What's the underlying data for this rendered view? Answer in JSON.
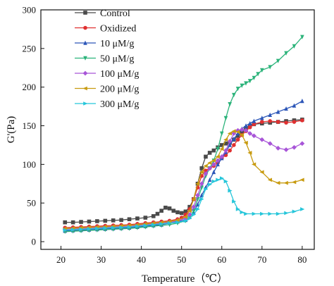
{
  "chart_data": {
    "type": "line",
    "title": "",
    "xlabel": "Temperature（℃）",
    "ylabel": "G'(Pa)",
    "xlim": [
      15,
      83
    ],
    "ylim": [
      -10,
      300
    ],
    "xticks": [
      20,
      30,
      40,
      50,
      60,
      70,
      80
    ],
    "yticks": [
      0,
      50,
      100,
      150,
      200,
      250,
      300
    ],
    "grid": false,
    "legend_position": "top-left",
    "series": [
      {
        "name": "Control",
        "color": "#4a4a4a",
        "marker": "square",
        "x": [
          21,
          23,
          25,
          27,
          29,
          31,
          33,
          35,
          37,
          39,
          41,
          43,
          44,
          45,
          46,
          47,
          48,
          49,
          50,
          51,
          52,
          53,
          54,
          55,
          56,
          57,
          58,
          59,
          60,
          61,
          62,
          63,
          64,
          65,
          66,
          67,
          68,
          70,
          72,
          74,
          76,
          78,
          80
        ],
        "y": [
          25,
          25,
          25.5,
          26,
          26.5,
          27,
          27.5,
          28,
          29,
          30,
          31,
          33,
          36,
          40,
          44,
          43,
          40,
          38,
          37,
          39,
          45,
          55,
          75,
          95,
          110,
          115,
          118,
          122,
          125,
          127,
          128,
          132,
          137,
          142,
          147,
          150,
          152,
          153,
          154,
          155,
          156,
          157,
          158
        ]
      },
      {
        "name": "Oxidized",
        "color": "#e03030",
        "marker": "circle",
        "x": [
          21,
          23,
          25,
          27,
          29,
          31,
          33,
          35,
          37,
          39,
          41,
          43,
          45,
          47,
          49,
          50,
          51,
          52,
          53,
          54,
          55,
          56,
          57,
          58,
          59,
          60,
          61,
          62,
          63,
          64,
          65,
          66,
          67,
          68,
          70,
          72,
          74,
          76,
          78,
          80
        ],
        "y": [
          18,
          18.5,
          19,
          19.5,
          20,
          20.5,
          21,
          21.5,
          22,
          23,
          24,
          25,
          26,
          27,
          29,
          31,
          35,
          42,
          55,
          70,
          85,
          92,
          95,
          98,
          102,
          108,
          112,
          118,
          125,
          132,
          138,
          143,
          148,
          152,
          155,
          156,
          155,
          154,
          155,
          157
        ]
      },
      {
        "name": "10  μM/g",
        "color": "#2c56b8",
        "marker": "triangle-up",
        "x": [
          21,
          23,
          25,
          27,
          29,
          31,
          33,
          35,
          37,
          39,
          41,
          43,
          45,
          47,
          49,
          51,
          52,
          53,
          54,
          55,
          56,
          57,
          58,
          59,
          60,
          61,
          62,
          63,
          64,
          65,
          66,
          67,
          68,
          70,
          72,
          74,
          76,
          78,
          80
        ],
        "y": [
          14,
          14.5,
          15,
          15.5,
          16,
          16.5,
          17,
          17.5,
          18,
          19,
          20,
          21,
          22,
          24,
          26,
          28,
          32,
          38,
          48,
          60,
          70,
          80,
          90,
          100,
          108,
          116,
          125,
          133,
          140,
          146,
          150,
          153,
          156,
          160,
          164,
          168,
          172,
          176,
          182
        ]
      },
      {
        "name": "50  μM/g",
        "color": "#2bb37a",
        "marker": "triangle-down",
        "x": [
          21,
          23,
          25,
          27,
          29,
          31,
          33,
          35,
          37,
          39,
          41,
          43,
          45,
          47,
          49,
          51,
          52,
          53,
          54,
          55,
          56,
          57,
          58,
          59,
          60,
          61,
          62,
          63,
          64,
          65,
          66,
          67,
          68,
          69,
          70,
          72,
          74,
          76,
          78,
          80
        ],
        "y": [
          13,
          13.5,
          14,
          14.5,
          15,
          15.5,
          16,
          16.5,
          17,
          18,
          19,
          20,
          21,
          22,
          24,
          27,
          32,
          40,
          55,
          70,
          85,
          95,
          105,
          120,
          140,
          160,
          178,
          190,
          198,
          202,
          205,
          208,
          212,
          217,
          222,
          226,
          234,
          244,
          253,
          265
        ]
      },
      {
        "name": "100 μM/g",
        "color": "#a855d8",
        "marker": "diamond",
        "x": [
          21,
          23,
          25,
          27,
          29,
          31,
          33,
          35,
          37,
          39,
          41,
          43,
          45,
          47,
          49,
          51,
          52,
          53,
          54,
          55,
          56,
          57,
          58,
          59,
          60,
          61,
          62,
          63,
          64,
          65,
          66,
          67,
          68,
          70,
          72,
          74,
          76,
          78,
          80
        ],
        "y": [
          16,
          16.5,
          17,
          17.5,
          18,
          18.5,
          19,
          19.5,
          20,
          21,
          22,
          23,
          24,
          25,
          27,
          30,
          35,
          45,
          60,
          75,
          88,
          95,
          100,
          105,
          110,
          118,
          130,
          140,
          144,
          145,
          144,
          140,
          137,
          132,
          127,
          121,
          119,
          122,
          127
        ]
      },
      {
        "name": "200 μM/g",
        "color": "#c89b10",
        "marker": "triangle-left",
        "x": [
          21,
          23,
          25,
          27,
          29,
          31,
          33,
          35,
          37,
          39,
          41,
          43,
          45,
          47,
          49,
          51,
          52,
          53,
          54,
          55,
          56,
          57,
          58,
          59,
          60,
          61,
          62,
          63,
          64,
          65,
          66,
          67,
          68,
          70,
          72,
          74,
          76,
          78,
          80
        ],
        "y": [
          17,
          17.5,
          18,
          18.5,
          19,
          19.5,
          20,
          20.5,
          21,
          22,
          23,
          24,
          25,
          26,
          28,
          32,
          40,
          55,
          75,
          90,
          98,
          102,
          105,
          110,
          120,
          132,
          140,
          143,
          142,
          138,
          128,
          115,
          100,
          90,
          80,
          76,
          76,
          77,
          80
        ]
      },
      {
        "name": "300 μM/g",
        "color": "#26c6da",
        "marker": "triangle-right",
        "x": [
          21,
          23,
          25,
          27,
          29,
          31,
          33,
          35,
          37,
          39,
          41,
          43,
          45,
          47,
          49,
          51,
          52,
          53,
          54,
          55,
          56,
          57,
          58,
          59,
          60,
          61,
          62,
          63,
          64,
          65,
          66,
          68,
          70,
          72,
          74,
          76,
          78,
          80
        ],
        "y": [
          15,
          15.5,
          16,
          16.5,
          17,
          17.5,
          18,
          18.5,
          19,
          20,
          21,
          22,
          23,
          24,
          25,
          27,
          30,
          35,
          42,
          55,
          68,
          74,
          78,
          80,
          82,
          78,
          66,
          52,
          42,
          38,
          36,
          36,
          36,
          36,
          36,
          37,
          39,
          42
        ]
      }
    ]
  }
}
